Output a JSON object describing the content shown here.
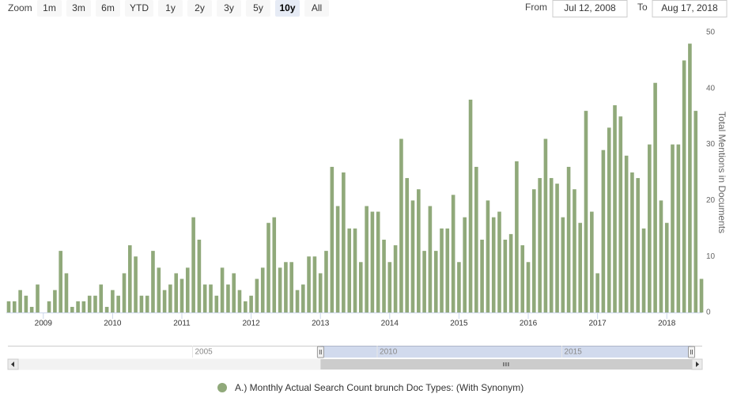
{
  "range_selector": {
    "zoom_label": "Zoom",
    "buttons": [
      "1m",
      "3m",
      "6m",
      "YTD",
      "1y",
      "2y",
      "3y",
      "5y",
      "10y",
      "All"
    ],
    "selected": "10y",
    "from_label": "From",
    "from": "Jul 12, 2008",
    "to_label": "To",
    "to": "Aug 17, 2018"
  },
  "chart_data": {
    "type": "bar",
    "y_axis_title": "Total Mentions in Documents",
    "y_axis_side": "right",
    "grid": false,
    "x": [
      2008.5,
      2008.583,
      2008.667,
      2008.75,
      2008.833,
      2008.917,
      2009,
      2009.083,
      2009.167,
      2009.25,
      2009.333,
      2009.417,
      2009.5,
      2009.583,
      2009.667,
      2009.75,
      2009.833,
      2009.917,
      2010,
      2010.083,
      2010.167,
      2010.25,
      2010.333,
      2010.417,
      2010.5,
      2010.583,
      2010.667,
      2010.75,
      2010.833,
      2010.917,
      2011,
      2011.083,
      2011.167,
      2011.25,
      2011.333,
      2011.417,
      2011.5,
      2011.583,
      2011.667,
      2011.75,
      2011.833,
      2011.917,
      2012,
      2012.083,
      2012.167,
      2012.25,
      2012.333,
      2012.417,
      2012.5,
      2012.583,
      2012.667,
      2012.75,
      2012.833,
      2012.917,
      2013,
      2013.083,
      2013.167,
      2013.25,
      2013.333,
      2013.417,
      2013.5,
      2013.583,
      2013.667,
      2013.75,
      2013.833,
      2013.917,
      2014,
      2014.083,
      2014.167,
      2014.25,
      2014.333,
      2014.417,
      2014.5,
      2014.583,
      2014.667,
      2014.75,
      2014.833,
      2014.917,
      2015,
      2015.083,
      2015.167,
      2015.25,
      2015.333,
      2015.417,
      2015.5,
      2015.583,
      2015.667,
      2015.75,
      2015.833,
      2015.917,
      2016,
      2016.083,
      2016.167,
      2016.25,
      2016.333,
      2016.417,
      2016.5,
      2016.583,
      2016.667,
      2016.75,
      2016.833,
      2016.917,
      2017,
      2017.083,
      2017.167,
      2017.25,
      2017.333,
      2017.417,
      2017.5,
      2017.583,
      2017.667,
      2017.75,
      2017.833,
      2017.917,
      2018,
      2018.083,
      2018.167,
      2018.25,
      2018.333,
      2018.417,
      2018.5
    ],
    "series": [
      {
        "name": "A.) Monthly Actual Search Count brunch Doc Types: (With Synonym)",
        "color": "#90a97a",
        "values": [
          2,
          2,
          4,
          3,
          1,
          5,
          0,
          2,
          4,
          11,
          7,
          1,
          2,
          2,
          3,
          3,
          5,
          1,
          4,
          3,
          7,
          12,
          10,
          3,
          3,
          11,
          8,
          4,
          5,
          7,
          6,
          8,
          17,
          13,
          5,
          5,
          3,
          8,
          5,
          7,
          4,
          2,
          3,
          6,
          8,
          16,
          17,
          8,
          9,
          9,
          4,
          5,
          10,
          10,
          7,
          11,
          26,
          19,
          25,
          15,
          15,
          9,
          19,
          18,
          18,
          13,
          9,
          12,
          31,
          24,
          20,
          22,
          11,
          19,
          11,
          15,
          15,
          21,
          9,
          17,
          38,
          26,
          13,
          20,
          17,
          18,
          13,
          14,
          27,
          12,
          9,
          22,
          24,
          31,
          24,
          23,
          17,
          26,
          22,
          16,
          36,
          18,
          7,
          29,
          33,
          37,
          35,
          28,
          25,
          24,
          15,
          30,
          41,
          20,
          16,
          30,
          30,
          45,
          48,
          36,
          6
        ]
      }
    ],
    "xlim": [
      2008.466,
      2018.511
    ],
    "xticks": [
      2009,
      2010,
      2011,
      2012,
      2013,
      2014,
      2015,
      2016,
      2017,
      2018
    ],
    "ylim": [
      0,
      50
    ],
    "yticks": [
      0,
      10,
      20,
      30,
      40,
      50
    ],
    "navigator": {
      "xlim": [
        2000,
        2018.8
      ],
      "xticks": [
        2005,
        2010,
        2015
      ]
    }
  }
}
